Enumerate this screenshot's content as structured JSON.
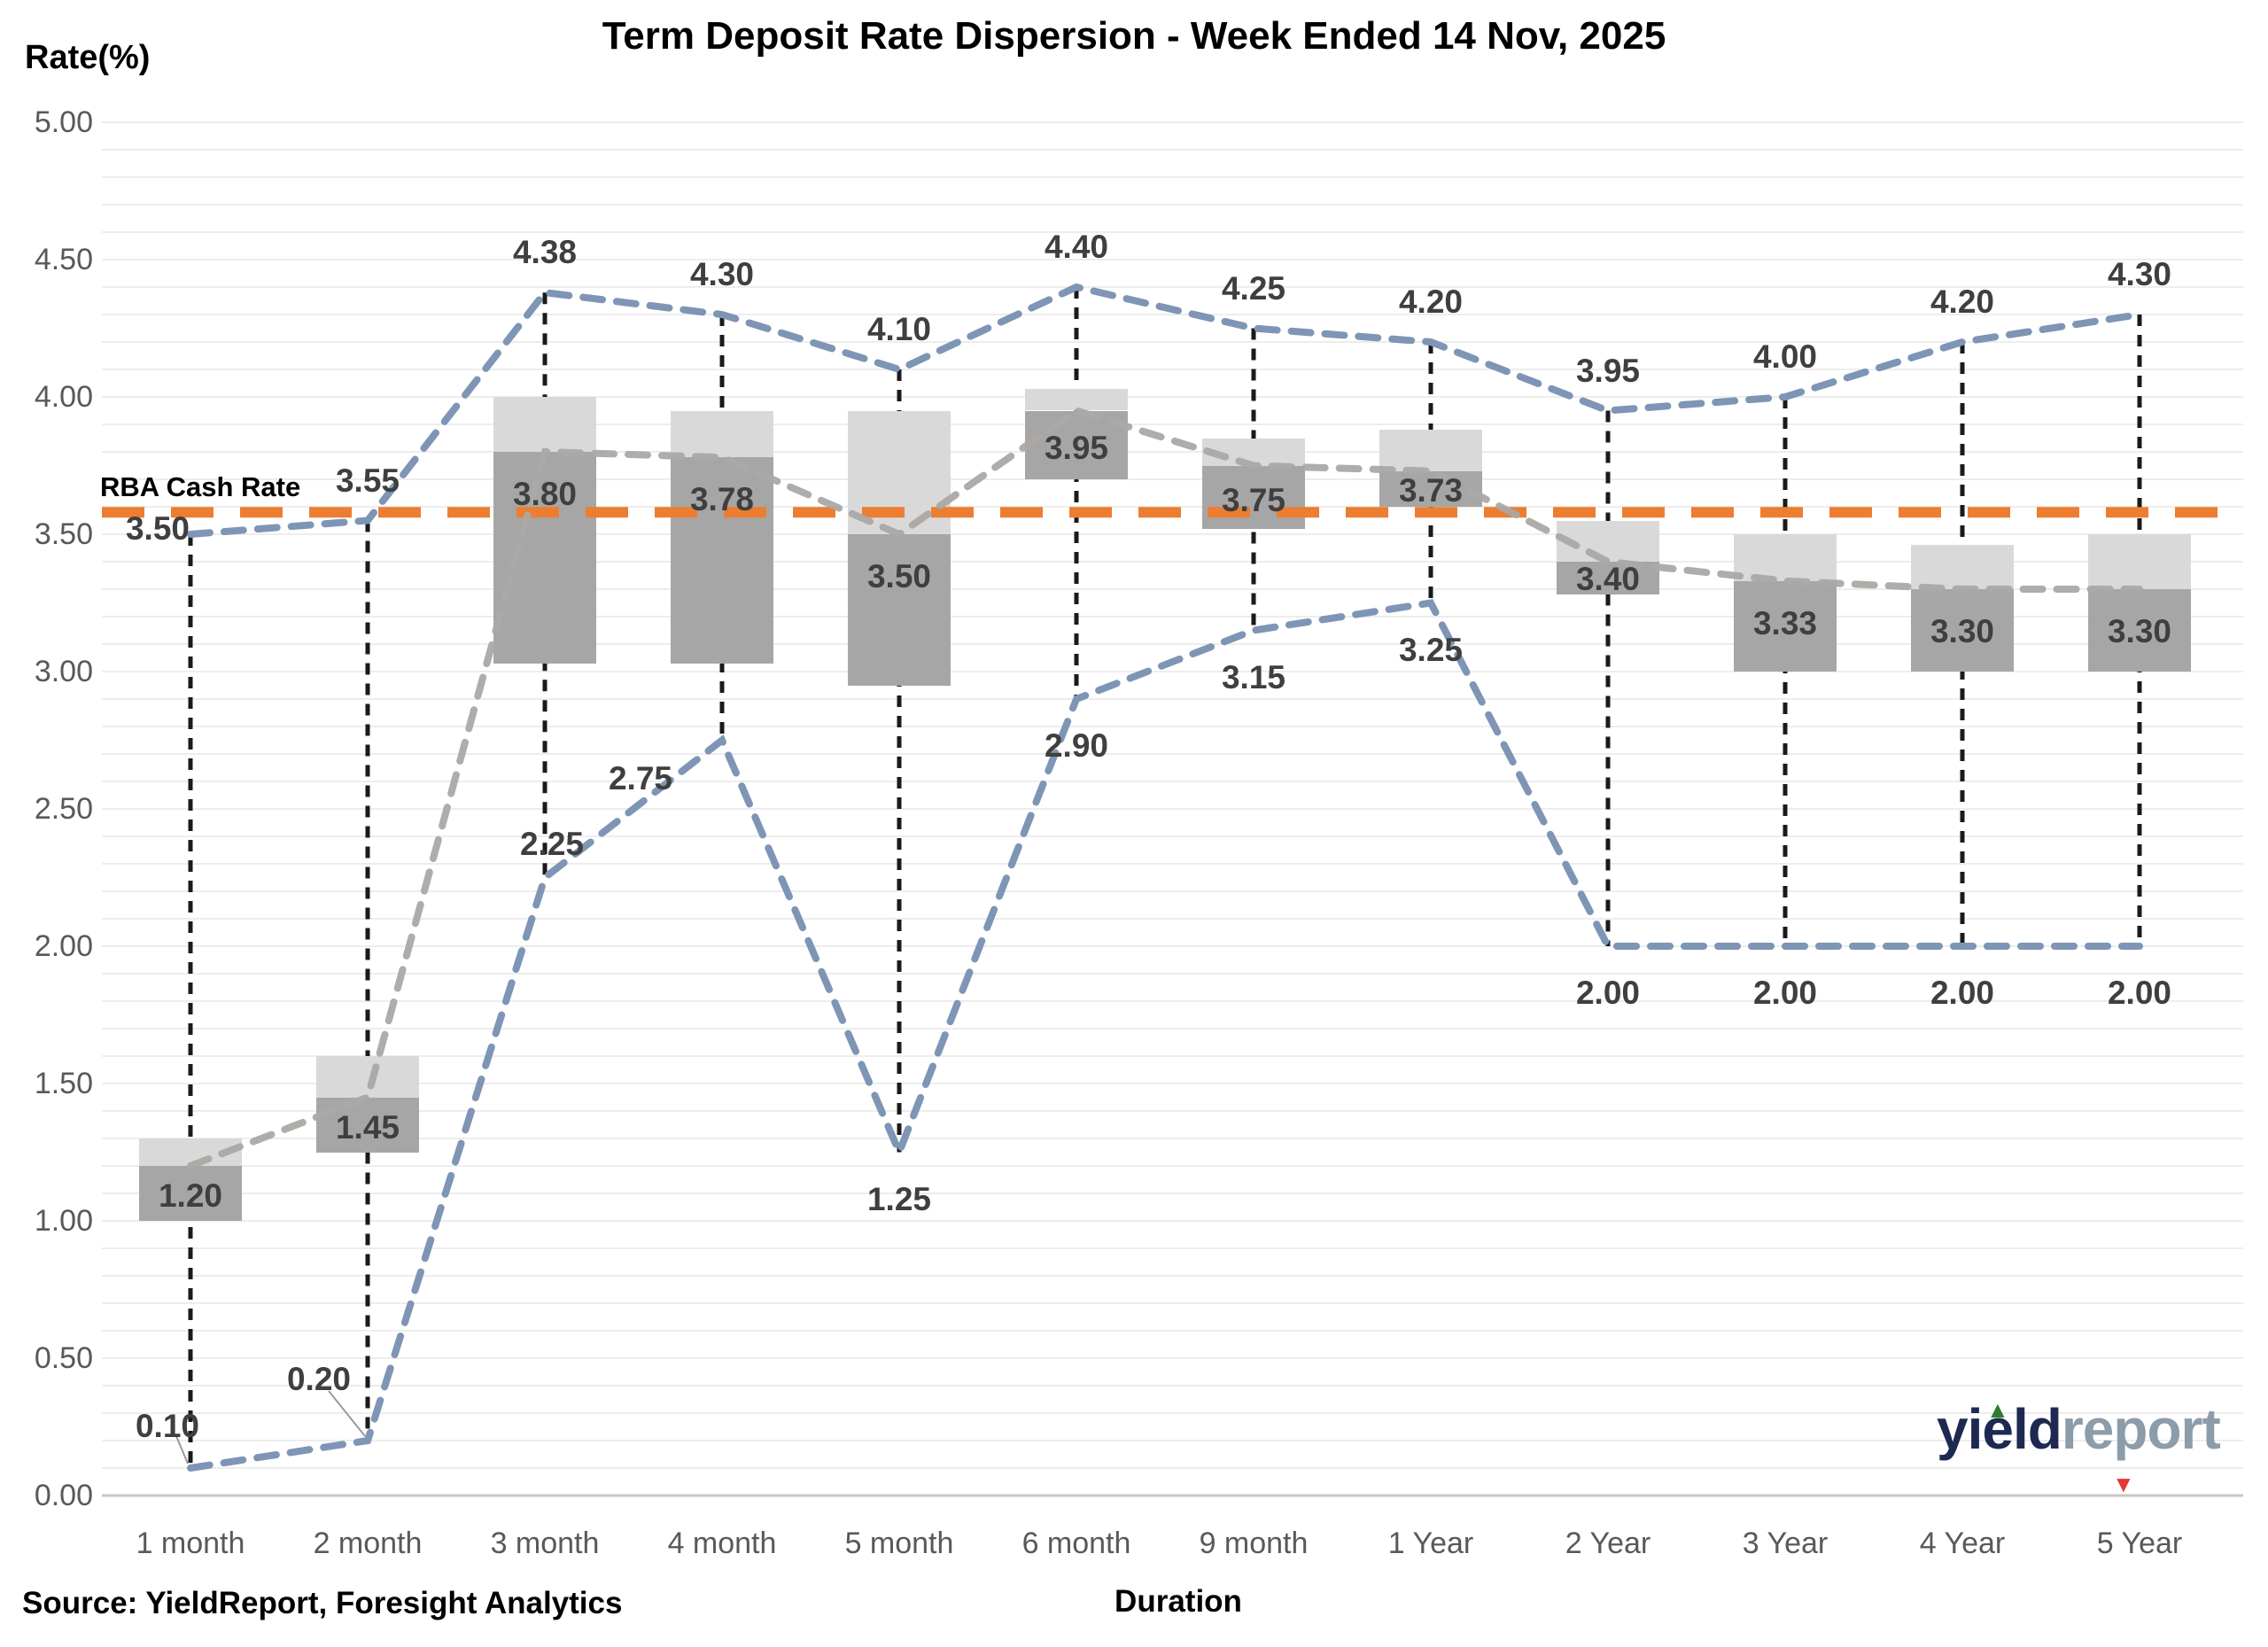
{
  "title": "Term Deposit Rate Dispersion - Week Ended 14 Nov, 2025",
  "y_axis_label": "Rate(%)",
  "x_axis_label": "Duration",
  "rba_label": "RBA Cash Rate",
  "source_text": "Source: YieldReport, Foresight Analytics",
  "logo": {
    "word1": "yield",
    "word2": "report",
    "up_marker": "▲",
    "down_marker": "▼"
  },
  "colors": {
    "rba_line": "#ED7D31",
    "envelope_line": "#7E95B5",
    "median_line": "#ABA8A4",
    "whisker": "#1A1A1A",
    "box_upper": "#D9D9D9",
    "box_lower": "#A6A6A6",
    "gridline": "#ededed",
    "axis_line": "#c7c7c7",
    "data_label": "#3f3f3f",
    "tick_label": "#595959"
  },
  "chart_data": {
    "type": "boxplot",
    "title": "Term Deposit Rate Dispersion - Week Ended 14 Nov, 2025",
    "xlabel": "Duration",
    "ylabel": "Rate(%)",
    "ylim": [
      0,
      5
    ],
    "y_tick_step": 0.5,
    "y_minor_grid_step": 0.1,
    "legend": "none",
    "rba_cash_rate": 3.58,
    "categories": [
      "1 month",
      "2 month",
      "3 month",
      "4 month",
      "5 month",
      "6 month",
      "9 month",
      "1 Year",
      "2 Year",
      "3 Year",
      "4 Year",
      "5 Year"
    ],
    "series": [
      {
        "name": "max",
        "values": [
          3.5,
          3.55,
          4.38,
          4.3,
          4.1,
          4.4,
          4.25,
          4.2,
          3.95,
          4.0,
          4.2,
          4.3
        ]
      },
      {
        "name": "min",
        "values": [
          0.1,
          0.2,
          2.25,
          2.75,
          1.25,
          2.9,
          3.15,
          3.25,
          2.0,
          2.0,
          2.0,
          2.0
        ]
      },
      {
        "name": "median",
        "values": [
          1.2,
          1.45,
          3.8,
          3.78,
          3.5,
          3.95,
          3.75,
          3.73,
          3.4,
          3.33,
          3.3,
          3.3
        ]
      },
      {
        "name": "box_top",
        "values": [
          1.3,
          1.6,
          4.0,
          3.95,
          3.95,
          4.03,
          3.85,
          3.88,
          3.55,
          3.5,
          3.46,
          3.5
        ]
      },
      {
        "name": "box_bottom",
        "values": [
          1.0,
          1.25,
          3.03,
          3.03,
          2.95,
          3.7,
          3.52,
          3.6,
          3.28,
          3.0,
          3.0,
          3.0
        ]
      }
    ]
  }
}
